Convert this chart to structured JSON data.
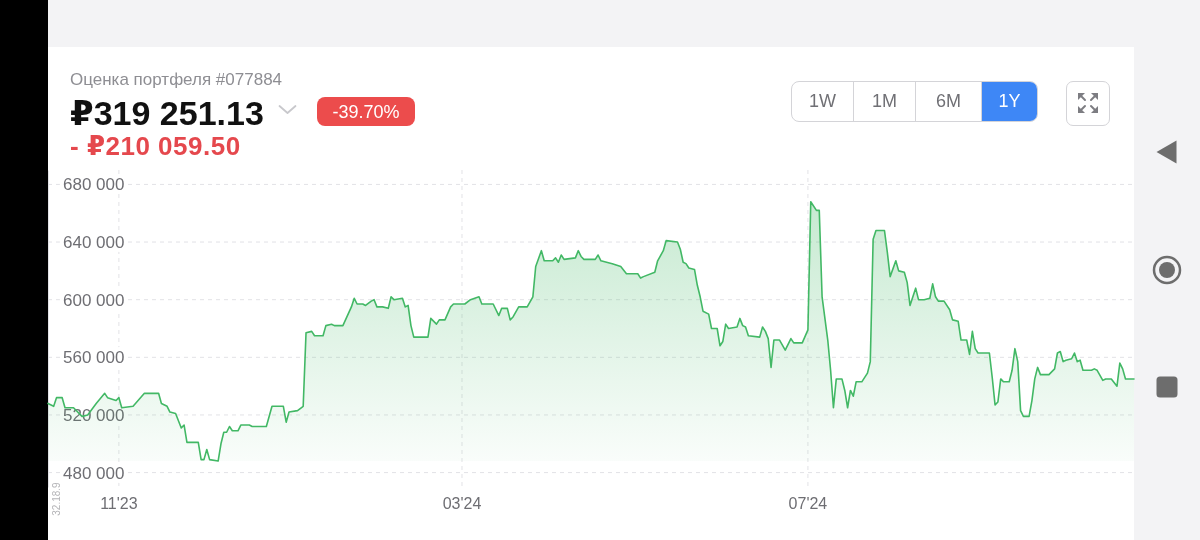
{
  "chart_data": {
    "type": "area",
    "title": "Оценка портфеля #077884",
    "subtitle": "₽319 251.13",
    "annotations": [
      "-39.70%",
      "- ₽210 059.50",
      "1W",
      "1M",
      "6M",
      "1Y",
      "32.18.9"
    ],
    "x": [
      "2023-10-07",
      "2023-10-09",
      "2023-10-10",
      "2023-10-12",
      "2023-10-13",
      "2023-10-16",
      "2023-10-19",
      "2023-10-21",
      "2023-10-24",
      "2023-10-27",
      "2023-10-28",
      "2023-10-31",
      "2023-11-01",
      "2023-11-02",
      "2023-11-06",
      "2023-11-10",
      "2023-11-15",
      "2023-11-16",
      "2023-11-18",
      "2023-11-19",
      "2023-11-21",
      "2023-11-23",
      "2023-11-24",
      "2023-11-25",
      "2023-11-29",
      "2023-11-30",
      "2023-12-01",
      "2023-12-02",
      "2023-12-03",
      "2023-12-06",
      "2023-12-07",
      "2023-12-08",
      "2023-12-09",
      "2023-12-10",
      "2023-12-11",
      "2023-12-13",
      "2023-12-14",
      "2023-12-17",
      "2023-12-18",
      "2023-12-23",
      "2023-12-25",
      "2023-12-29",
      "2023-12-30",
      "2023-12-31",
      "2024-01-03",
      "2024-01-05",
      "2024-01-06",
      "2024-01-08",
      "2024-01-09",
      "2024-01-12",
      "2024-01-13",
      "2024-01-15",
      "2024-01-16",
      "2024-01-19",
      "2024-01-22",
      "2024-01-23",
      "2024-01-24",
      "2024-01-26",
      "2024-01-27",
      "2024-01-29",
      "2024-01-30",
      "2024-01-31",
      "2024-02-02",
      "2024-02-04",
      "2024-02-05",
      "2024-02-06",
      "2024-02-09",
      "2024-02-10",
      "2024-02-11",
      "2024-02-12",
      "2024-02-13",
      "2024-02-18",
      "2024-02-19",
      "2024-02-21",
      "2024-02-22",
      "2024-02-24",
      "2024-02-26",
      "2024-02-27",
      "2024-02-29",
      "2024-03-02",
      "2024-03-04",
      "2024-03-07",
      "2024-03-08",
      "2024-03-12",
      "2024-03-14",
      "2024-03-15",
      "2024-03-17",
      "2024-03-18",
      "2024-03-19",
      "2024-03-21",
      "2024-03-24",
      "2024-03-26",
      "2024-03-27",
      "2024-03-29",
      "2024-03-30",
      "2024-04-02",
      "2024-04-03",
      "2024-04-04",
      "2024-04-05",
      "2024-04-06",
      "2024-04-10",
      "2024-04-11",
      "2024-04-12",
      "2024-04-13",
      "2024-04-17",
      "2024-04-18",
      "2024-04-19",
      "2024-04-23",
      "2024-04-26",
      "2024-04-28",
      "2024-05-02",
      "2024-05-03",
      "2024-05-04",
      "2024-05-08",
      "2024-05-09",
      "2024-05-11",
      "2024-05-12",
      "2024-05-16",
      "2024-05-17",
      "2024-05-18",
      "2024-05-19",
      "2024-05-20",
      "2024-05-22",
      "2024-05-23",
      "2024-05-24",
      "2024-05-25",
      "2024-05-27",
      "2024-05-28",
      "2024-05-30",
      "2024-05-31",
      "2024-06-01",
      "2024-06-02",
      "2024-06-03",
      "2024-06-06",
      "2024-06-07",
      "2024-06-08",
      "2024-06-09",
      "2024-06-10",
      "2024-06-14",
      "2024-06-15",
      "2024-06-16",
      "2024-06-17",
      "2024-06-18",
      "2024-06-19",
      "2024-06-21",
      "2024-06-23",
      "2024-06-25",
      "2024-06-26",
      "2024-06-29",
      "2024-07-01",
      "2024-07-02",
      "2024-07-04",
      "2024-07-05",
      "2024-07-06",
      "2024-07-08",
      "2024-07-09",
      "2024-07-10",
      "2024-07-11",
      "2024-07-13",
      "2024-07-14",
      "2024-07-15",
      "2024-07-16",
      "2024-07-17",
      "2024-07-18",
      "2024-07-20",
      "2024-07-22",
      "2024-07-23",
      "2024-07-24",
      "2024-07-25",
      "2024-07-28",
      "2024-07-29",
      "2024-07-30",
      "2024-08-01",
      "2024-08-02",
      "2024-08-04",
      "2024-08-05",
      "2024-08-06",
      "2024-08-08",
      "2024-08-09",
      "2024-08-11",
      "2024-08-13",
      "2024-08-14",
      "2024-08-15",
      "2024-08-16",
      "2024-08-18",
      "2024-08-20",
      "2024-08-21",
      "2024-08-23",
      "2024-08-24",
      "2024-08-26",
      "2024-08-27",
      "2024-08-28",
      "2024-08-29",
      "2024-08-30",
      "2024-09-03",
      "2024-09-04",
      "2024-09-05",
      "2024-09-06",
      "2024-09-07",
      "2024-09-08",
      "2024-09-10",
      "2024-09-11",
      "2024-09-12",
      "2024-09-13",
      "2024-09-14",
      "2024-09-15",
      "2024-09-17",
      "2024-09-18",
      "2024-09-19",
      "2024-09-20",
      "2024-09-21",
      "2024-09-24",
      "2024-09-26",
      "2024-09-27",
      "2024-09-28",
      "2024-09-29",
      "2024-09-30",
      "2024-10-02",
      "2024-10-03",
      "2024-10-04",
      "2024-10-05",
      "2024-10-06",
      "2024-10-09",
      "2024-10-10",
      "2024-10-11",
      "2024-10-13",
      "2024-10-14",
      "2024-10-16",
      "2024-10-18",
      "2024-10-19",
      "2024-10-20",
      "2024-10-21",
      "2024-10-24"
    ],
    "values": [
      528000,
      526000,
      532000,
      532000,
      525000,
      525000,
      519000,
      520000,
      528000,
      535000,
      532000,
      530000,
      532000,
      525000,
      526000,
      535000,
      535000,
      528000,
      526000,
      522000,
      521000,
      511000,
      513000,
      501000,
      501000,
      489000,
      489000,
      496000,
      489000,
      488000,
      500000,
      508000,
      508000,
      512000,
      509000,
      509000,
      513000,
      513000,
      512000,
      512000,
      526000,
      526000,
      515000,
      522000,
      523000,
      526000,
      577000,
      578000,
      575000,
      575000,
      582000,
      583000,
      582000,
      582000,
      595000,
      601000,
      597000,
      597000,
      596000,
      599000,
      600000,
      595000,
      595000,
      594000,
      602000,
      600000,
      601000,
      595000,
      596000,
      582000,
      574000,
      574000,
      587000,
      583000,
      586000,
      586000,
      595000,
      597000,
      597000,
      597000,
      600000,
      602000,
      597000,
      597000,
      589000,
      594000,
      594000,
      586000,
      588000,
      595000,
      595000,
      602000,
      623000,
      634000,
      627000,
      627000,
      629000,
      626000,
      631000,
      628000,
      629000,
      634000,
      630000,
      628000,
      628000,
      631000,
      627000,
      625000,
      623000,
      618000,
      618000,
      615000,
      616000,
      619000,
      627000,
      634000,
      641000,
      640000,
      635000,
      626000,
      625000,
      622000,
      621000,
      610000,
      602000,
      592000,
      590000,
      580000,
      580000,
      568000,
      571000,
      583000,
      580000,
      581000,
      587000,
      582000,
      581000,
      575000,
      574000,
      581000,
      578000,
      573000,
      553000,
      572000,
      572000,
      565000,
      573000,
      570000,
      570000,
      579000,
      668000,
      662000,
      662000,
      602000,
      572000,
      551000,
      525000,
      545000,
      545000,
      537000,
      525000,
      537000,
      533000,
      543000,
      543000,
      549000,
      557000,
      642000,
      648000,
      648000,
      633000,
      616000,
      627000,
      620000,
      619000,
      612000,
      596000,
      608000,
      600000,
      600000,
      601000,
      611000,
      602000,
      599000,
      599000,
      593000,
      586000,
      585000,
      572000,
      572000,
      562000,
      578000,
      566000,
      563000,
      563000,
      546000,
      527000,
      529000,
      545000,
      543000,
      543000,
      551000,
      566000,
      557000,
      523000,
      519000,
      519000,
      530000,
      545000,
      553000,
      548000,
      548000,
      552000,
      563000,
      564000,
      557000,
      558000,
      559000,
      563000,
      557000,
      558000,
      551000,
      551000,
      552000,
      551000,
      544000,
      545000,
      545000,
      540000,
      556000,
      552000,
      545000,
      545000
    ],
    "color": "#42b865",
    "xlim": [
      "2023-10-07",
      "2024-10-24"
    ],
    "xticks": [
      {
        "value": "2023-11-01",
        "label": "11'23"
      },
      {
        "value": "2024-03-01",
        "label": "03'24"
      },
      {
        "value": "2024-07-01",
        "label": "07'24"
      }
    ],
    "ylim": [
      470000,
      690000
    ],
    "yticks": [
      {
        "value": 480000,
        "label": "480 000"
      },
      {
        "value": 520000,
        "label": "520 000"
      },
      {
        "value": 560000,
        "label": "560 000"
      },
      {
        "value": 600000,
        "label": "600 000"
      },
      {
        "value": 640000,
        "label": "640 000"
      },
      {
        "value": 680000,
        "label": "680 000"
      }
    ],
    "grid": true
  }
}
